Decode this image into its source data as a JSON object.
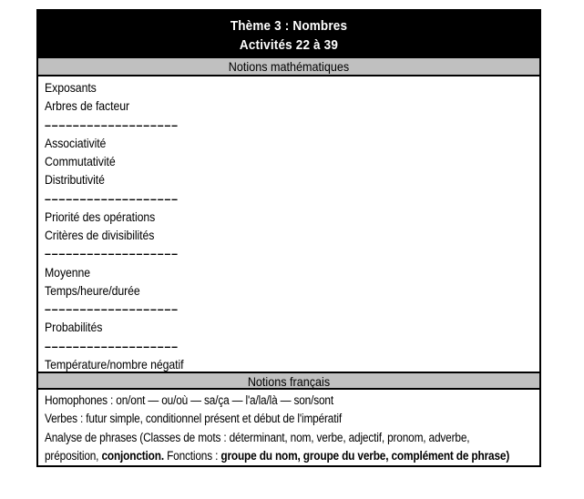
{
  "colors": {
    "band_bg": "#000000",
    "band_text": "#ffffff",
    "section_heading_bg": "#c0c0c0",
    "border": "#000000",
    "page_bg": "#ffffff"
  },
  "title_band": {
    "line1": "Thème 3 : Nombres",
    "line2": "Activités 22 à 39"
  },
  "sections": {
    "math": {
      "heading": "Notions mathématiques",
      "items": [
        "Exposants",
        "Arbres de facteur",
        "–––––––––––––––––––",
        "Associativité",
        "Commutativité",
        "Distributivité",
        "–––––––––––––––––––",
        "Priorité des opérations",
        "Critères de divisibilités",
        "–––––––––––––––––––",
        "Moyenne",
        "Temps/heure/durée",
        "–––––––––––––––––––",
        "Probabilités",
        "–––––––––––––––––––",
        "Température/nombre négatif"
      ]
    },
    "french": {
      "heading": "Notions français",
      "line1": "Homophones : on/ont — ou/où — sa/ça — l'a/la/là — son/sont",
      "line2": "Verbes : futur simple, conditionnel présent et début de l'impératif",
      "line3": "Analyse de phrases (Classes de mots : déterminant, nom, verbe, adjectif, pronom, adverbe,",
      "line4_normal1": "préposition, ",
      "line4_bold1": "conjonction.",
      "line4_normal2": " Fonctions : ",
      "line4_bold2": "groupe du nom, groupe du verbe, complément de phrase)"
    }
  }
}
